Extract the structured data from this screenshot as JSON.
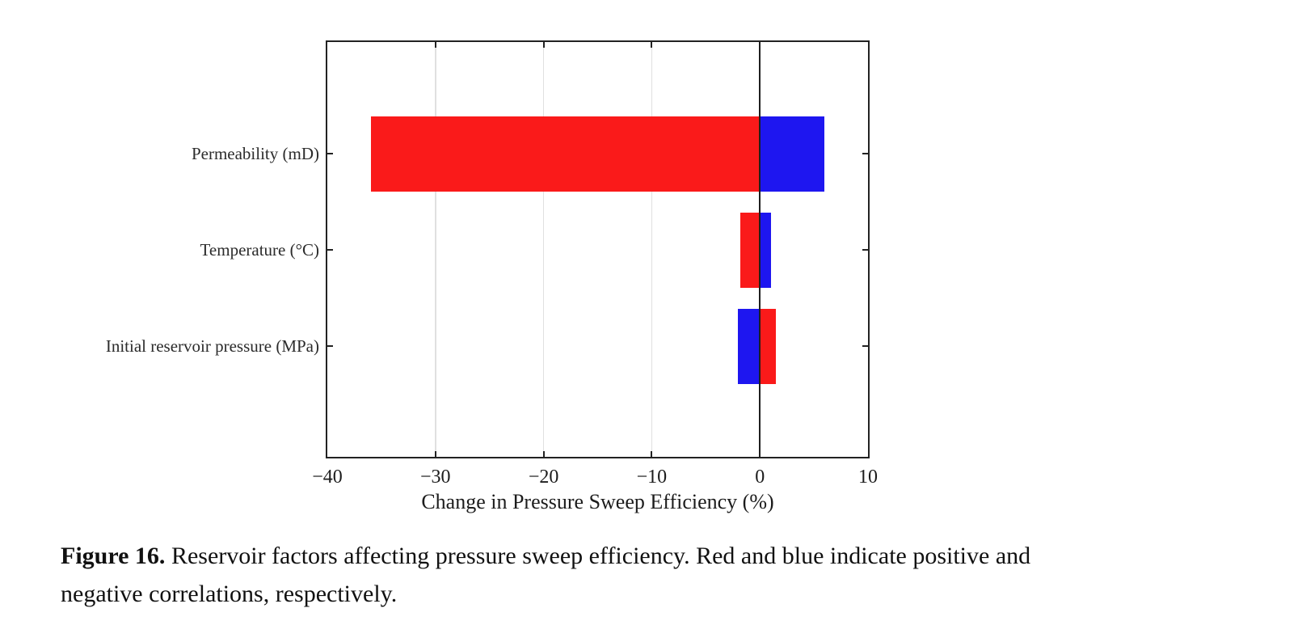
{
  "figure": {
    "caption_label": "Figure 16.",
    "caption_line1_rest": "Reservoir factors affecting pressure sweep efficiency. Red and blue indicate positive and",
    "caption_line2": "negative correlations, respectively."
  },
  "chart_data": {
    "type": "bar",
    "orientation": "horizontal",
    "title": "",
    "xlabel": "Change in Pressure Sweep Efficiency (%)",
    "ylabel": "",
    "xlim": [
      -40,
      10
    ],
    "xticks": [
      -40,
      -30,
      -20,
      -10,
      0,
      10
    ],
    "xtick_labels": [
      "−40",
      "−30",
      "−20",
      "−10",
      "0",
      "10"
    ],
    "categories": [
      "Permeability (mD)",
      "Temperature (°C)",
      "Initial reservoir pressure (MPa)"
    ],
    "colors": {
      "red": "#fa1a1a",
      "blue": "#1e16f0"
    },
    "color_meaning": {
      "red": "positive correlation",
      "blue": "negative correlation"
    },
    "bars": [
      {
        "category": "Permeability (mD)",
        "segments": [
          {
            "color": "red",
            "from": -36,
            "to": 0
          },
          {
            "color": "blue",
            "from": 0,
            "to": 6
          }
        ]
      },
      {
        "category": "Temperature (°C)",
        "segments": [
          {
            "color": "red",
            "from": -1.8,
            "to": 0
          },
          {
            "color": "blue",
            "from": 0,
            "to": 1
          }
        ]
      },
      {
        "category": "Initial reservoir pressure (MPa)",
        "segments": [
          {
            "color": "blue",
            "from": -2,
            "to": 0
          },
          {
            "color": "red",
            "from": 0,
            "to": 1.5
          }
        ]
      }
    ],
    "grid": "light vertical gridlines at interior x ticks; dark vertical line at 0",
    "legend": "none"
  }
}
